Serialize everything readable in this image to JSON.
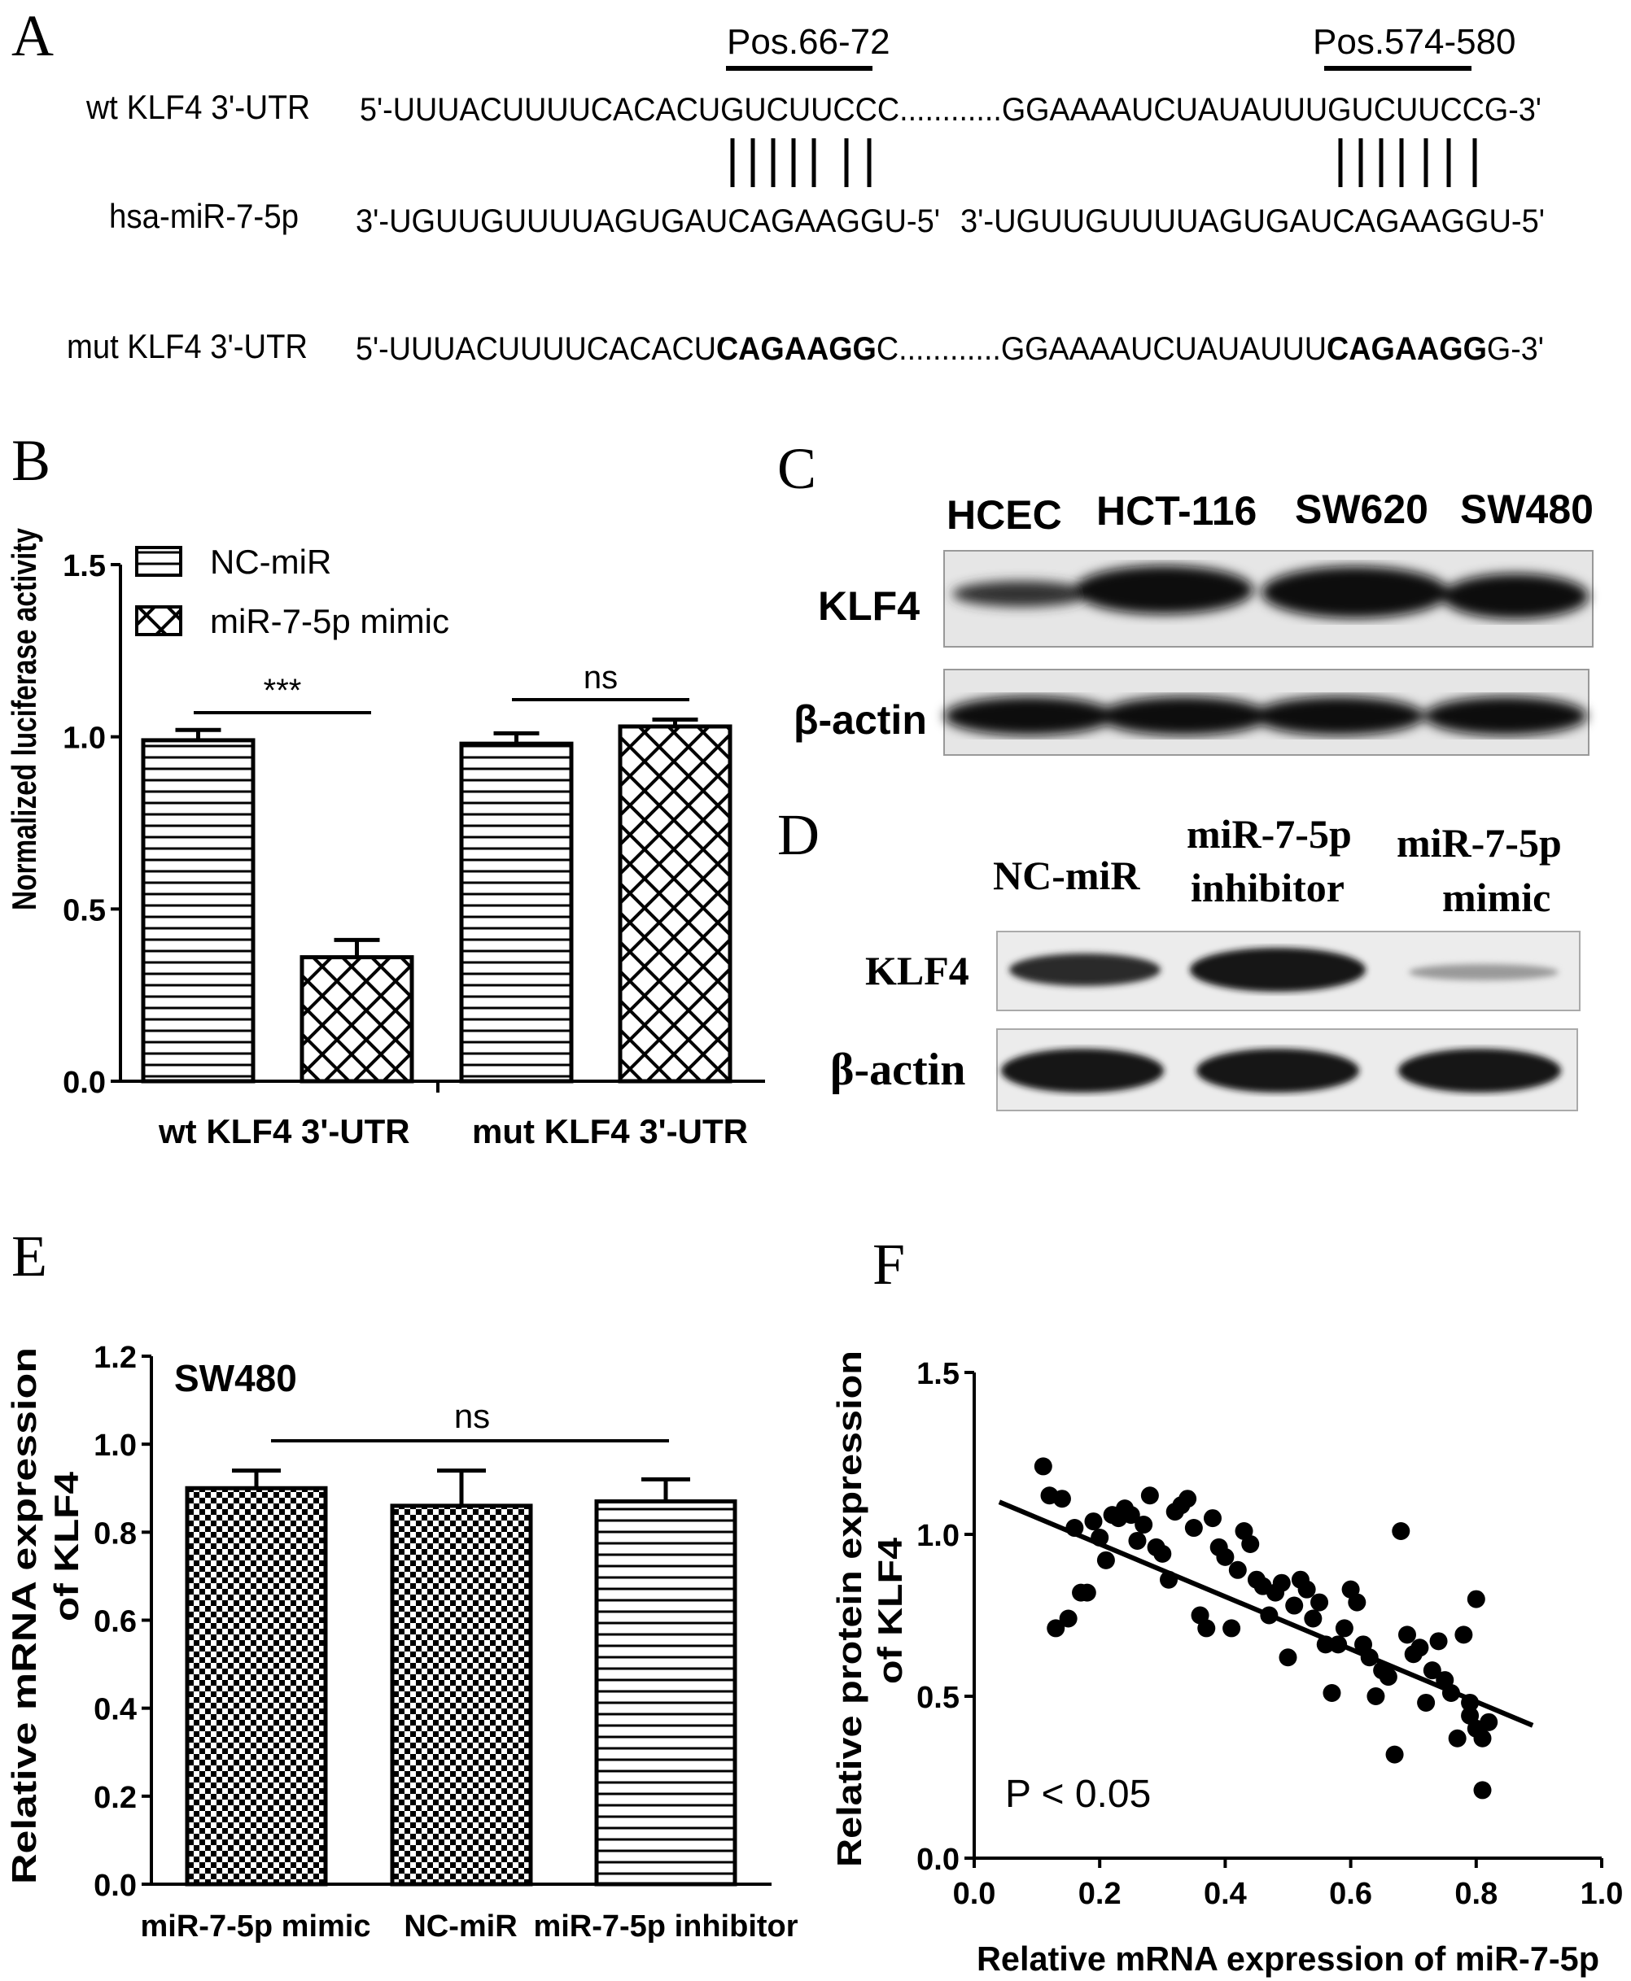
{
  "panelA": {
    "letter": "A",
    "pos1": "Pos.66-72",
    "pos2": "Pos.574-580",
    "wt_label": "wt KLF4 3'-UTR",
    "mir_label": "hsa-miR-7-5p",
    "mut_label": "mut KLF4 3'-UTR",
    "wt_seq": "5'-UUUACUUUUCACACUGUCUUCCC............GGAAAAUCUAUAUUUGUCUUCCG-3'",
    "mir_seq1": "3'-UGUUGUUUUAGUGAUCAGAAGGU-5'",
    "mir_seq2": "3'-UGUUGUUUUAGUGAUCAGAAGGU-5'",
    "mut_seq_a": "5'-UUUACUUUUCACACU",
    "mut_seq_b": "CAGAAGG",
    "mut_seq_c": "C............GGAAAAUCUAUAUUU",
    "mut_seq_d": "CAGAAGG",
    "mut_seq_e": "G-3'"
  },
  "panelB": {
    "letter": "B",
    "chart_data": {
      "type": "bar",
      "ylabel": "Normalized luciferase activity",
      "ylim": [
        0,
        1.5
      ],
      "yticks": [
        "0.0",
        "0.5",
        "1.0",
        "1.5"
      ],
      "categories": [
        "wt KLF4 3'-UTR",
        "mut KLF4 3'-UTR"
      ],
      "series": [
        {
          "name": "NC-miR",
          "values": [
            0.99,
            0.98
          ],
          "errors": [
            0.03,
            0.03
          ]
        },
        {
          "name": "miR-7-5p mimic",
          "values": [
            0.36,
            1.03
          ],
          "errors": [
            0.05,
            0.02
          ]
        }
      ],
      "annotations": [
        "***",
        "ns"
      ],
      "legend": "top-left"
    }
  },
  "panelC": {
    "letter": "C",
    "lanes": [
      "HCEC",
      "HCT-116",
      "SW620",
      "SW480"
    ],
    "rows": [
      "KLF4",
      "β-actin"
    ]
  },
  "panelD": {
    "letter": "D",
    "lane1": "NC-miR",
    "lane2a": "miR-7-5p",
    "lane2b": "inhibitor",
    "lane3a": "miR-7-5p",
    "lane3b": "mimic",
    "rows": [
      "KLF4",
      "β-actin"
    ]
  },
  "panelE": {
    "letter": "E",
    "chart_data": {
      "type": "bar",
      "title": "SW480",
      "ylabel_line1": "Relative mRNA expression",
      "ylabel_line2": "of KLF4",
      "ylim": [
        0,
        1.2
      ],
      "yticks": [
        "0.0",
        "0.2",
        "0.4",
        "0.6",
        "0.8",
        "1.0",
        "1.2"
      ],
      "categories": [
        "miR-7-5p mimic",
        "NC-miR",
        "miR-7-5p inhibitor"
      ],
      "values": [
        0.9,
        0.86,
        0.87
      ],
      "errors": [
        0.04,
        0.08,
        0.05
      ],
      "annotation": "ns"
    }
  },
  "panelF": {
    "letter": "F",
    "chart_data": {
      "type": "scatter",
      "xlabel": "Relative mRNA expression of miR-7-5p",
      "ylabel_line1": "Relative protein expression",
      "ylabel_line2": "of KLF4",
      "xlim": [
        0,
        1.0
      ],
      "ylim": [
        0,
        1.5
      ],
      "xticks": [
        "0.0",
        "0.2",
        "0.4",
        "0.6",
        "0.8",
        "1.0"
      ],
      "yticks": [
        "0.0",
        "0.5",
        "1.0",
        "1.5"
      ],
      "annotation": "P < 0.05",
      "fit": {
        "x": [
          0.04,
          0.89
        ],
        "y": [
          1.1,
          0.41
        ]
      },
      "points": [
        [
          0.11,
          1.21
        ],
        [
          0.12,
          1.12
        ],
        [
          0.14,
          1.11
        ],
        [
          0.13,
          0.71
        ],
        [
          0.15,
          0.74
        ],
        [
          0.16,
          1.02
        ],
        [
          0.17,
          0.82
        ],
        [
          0.18,
          0.82
        ],
        [
          0.19,
          1.04
        ],
        [
          0.2,
          0.99
        ],
        [
          0.21,
          0.92
        ],
        [
          0.22,
          1.06
        ],
        [
          0.23,
          1.05
        ],
        [
          0.24,
          1.08
        ],
        [
          0.25,
          1.06
        ],
        [
          0.26,
          0.98
        ],
        [
          0.27,
          1.03
        ],
        [
          0.28,
          1.12
        ],
        [
          0.29,
          0.96
        ],
        [
          0.3,
          0.94
        ],
        [
          0.31,
          0.86
        ],
        [
          0.32,
          1.07
        ],
        [
          0.33,
          1.09
        ],
        [
          0.34,
          1.11
        ],
        [
          0.35,
          1.02
        ],
        [
          0.36,
          0.75
        ],
        [
          0.37,
          0.71
        ],
        [
          0.38,
          1.05
        ],
        [
          0.39,
          0.96
        ],
        [
          0.4,
          0.93
        ],
        [
          0.41,
          0.71
        ],
        [
          0.42,
          0.89
        ],
        [
          0.43,
          1.01
        ],
        [
          0.44,
          0.97
        ],
        [
          0.45,
          0.86
        ],
        [
          0.46,
          0.84
        ],
        [
          0.47,
          0.75
        ],
        [
          0.48,
          0.82
        ],
        [
          0.49,
          0.85
        ],
        [
          0.5,
          0.62
        ],
        [
          0.51,
          0.78
        ],
        [
          0.52,
          0.86
        ],
        [
          0.53,
          0.83
        ],
        [
          0.54,
          0.74
        ],
        [
          0.55,
          0.79
        ],
        [
          0.56,
          0.66
        ],
        [
          0.57,
          0.51
        ],
        [
          0.58,
          0.66
        ],
        [
          0.59,
          0.71
        ],
        [
          0.6,
          0.83
        ],
        [
          0.61,
          0.79
        ],
        [
          0.62,
          0.66
        ],
        [
          0.63,
          0.62
        ],
        [
          0.64,
          0.5
        ],
        [
          0.65,
          0.58
        ],
        [
          0.66,
          0.56
        ],
        [
          0.67,
          0.32
        ],
        [
          0.68,
          1.01
        ],
        [
          0.69,
          0.69
        ],
        [
          0.7,
          0.63
        ],
        [
          0.71,
          0.65
        ],
        [
          0.72,
          0.48
        ],
        [
          0.73,
          0.58
        ],
        [
          0.74,
          0.67
        ],
        [
          0.75,
          0.55
        ],
        [
          0.76,
          0.51
        ],
        [
          0.77,
          0.37
        ],
        [
          0.78,
          0.69
        ],
        [
          0.79,
          0.48
        ],
        [
          0.8,
          0.8
        ],
        [
          0.8,
          0.4
        ],
        [
          0.81,
          0.37
        ],
        [
          0.81,
          0.21
        ],
        [
          0.82,
          0.42
        ],
        [
          0.79,
          0.44
        ]
      ]
    }
  }
}
